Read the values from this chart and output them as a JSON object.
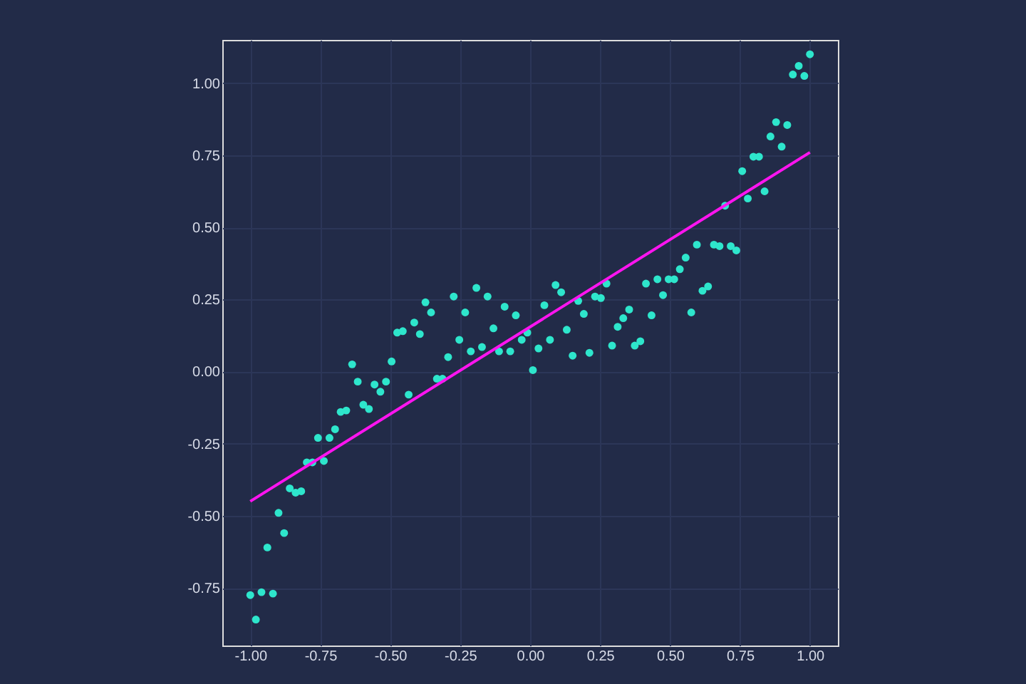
{
  "chart_data": {
    "type": "scatter",
    "marker": "circle",
    "grid": true,
    "xlim": [
      -1.1,
      1.1
    ],
    "ylim": [
      -0.95,
      1.15
    ],
    "xticks": [
      {
        "value": -1.0,
        "label": "-1.00"
      },
      {
        "value": -0.75,
        "label": "-0.75"
      },
      {
        "value": -0.5,
        "label": "-0.50"
      },
      {
        "value": -0.25,
        "label": "-0.25"
      },
      {
        "value": 0.0,
        "label": "0.00"
      },
      {
        "value": 0.25,
        "label": "0.25"
      },
      {
        "value": 0.5,
        "label": "0.50"
      },
      {
        "value": 0.75,
        "label": "0.75"
      },
      {
        "value": 1.0,
        "label": "1.00"
      }
    ],
    "yticks": [
      {
        "value": -0.75,
        "label": "-0.75"
      },
      {
        "value": -0.5,
        "label": "-0.50"
      },
      {
        "value": -0.25,
        "label": "-0.25"
      },
      {
        "value": 0.0,
        "label": "0.00"
      },
      {
        "value": 0.25,
        "label": "0.25"
      },
      {
        "value": 0.5,
        "label": "0.50"
      },
      {
        "value": 0.75,
        "label": "0.75"
      },
      {
        "value": 1.0,
        "label": "1.00"
      }
    ],
    "series": [
      {
        "color": "#2ee6cc",
        "x": [
          -1.0,
          -0.98,
          -0.96,
          -0.939,
          -0.919,
          -0.899,
          -0.879,
          -0.859,
          -0.838,
          -0.818,
          -0.798,
          -0.778,
          -0.758,
          -0.737,
          -0.717,
          -0.697,
          -0.677,
          -0.657,
          -0.636,
          -0.616,
          -0.596,
          -0.576,
          -0.556,
          -0.535,
          -0.515,
          -0.495,
          -0.475,
          -0.455,
          -0.434,
          -0.414,
          -0.394,
          -0.374,
          -0.354,
          -0.333,
          -0.313,
          -0.293,
          -0.273,
          -0.253,
          -0.232,
          -0.212,
          -0.192,
          -0.172,
          -0.152,
          -0.131,
          -0.111,
          -0.091,
          -0.071,
          -0.051,
          -0.03,
          -0.01,
          0.01,
          0.03,
          0.051,
          0.071,
          0.091,
          0.111,
          0.131,
          0.152,
          0.172,
          0.192,
          0.212,
          0.232,
          0.253,
          0.273,
          0.293,
          0.313,
          0.333,
          0.354,
          0.374,
          0.394,
          0.414,
          0.434,
          0.455,
          0.475,
          0.495,
          0.515,
          0.535,
          0.556,
          0.576,
          0.596,
          0.616,
          0.636,
          0.657,
          0.677,
          0.697,
          0.717,
          0.737,
          0.758,
          0.778,
          0.798,
          0.818,
          0.838,
          0.859,
          0.879,
          0.899,
          0.919,
          0.939,
          0.96,
          0.98,
          1.0
        ],
        "values": [
          -0.775,
          -0.86,
          -0.765,
          -0.61,
          -0.77,
          -0.49,
          -0.56,
          -0.405,
          -0.42,
          -0.415,
          -0.315,
          -0.315,
          -0.23,
          -0.31,
          -0.23,
          -0.2,
          -0.14,
          -0.135,
          0.025,
          -0.035,
          -0.115,
          -0.13,
          -0.045,
          -0.07,
          -0.035,
          0.035,
          0.135,
          0.14,
          -0.08,
          0.17,
          0.13,
          0.24,
          0.205,
          -0.025,
          -0.025,
          0.05,
          0.26,
          0.11,
          0.205,
          0.07,
          0.29,
          0.085,
          0.26,
          0.15,
          0.07,
          0.225,
          0.07,
          0.195,
          0.11,
          0.135,
          0.005,
          0.08,
          0.23,
          0.11,
          0.3,
          0.275,
          0.145,
          0.055,
          0.245,
          0.2,
          0.065,
          0.26,
          0.255,
          0.305,
          0.09,
          0.155,
          0.185,
          0.215,
          0.09,
          0.105,
          0.305,
          0.195,
          0.32,
          0.265,
          0.32,
          0.32,
          0.355,
          0.395,
          0.205,
          0.44,
          0.28,
          0.295,
          0.44,
          0.435,
          0.575,
          0.435,
          0.42,
          0.695,
          0.6,
          0.745,
          0.745,
          0.625,
          0.815,
          0.865,
          0.78,
          0.855,
          1.03,
          1.06,
          1.025,
          1.1
        ]
      },
      {
        "type": "line",
        "marker": "none",
        "color": "#ff14f0",
        "x": [
          -1.0,
          1.0
        ],
        "values": [
          -0.45,
          0.76
        ]
      }
    ]
  }
}
